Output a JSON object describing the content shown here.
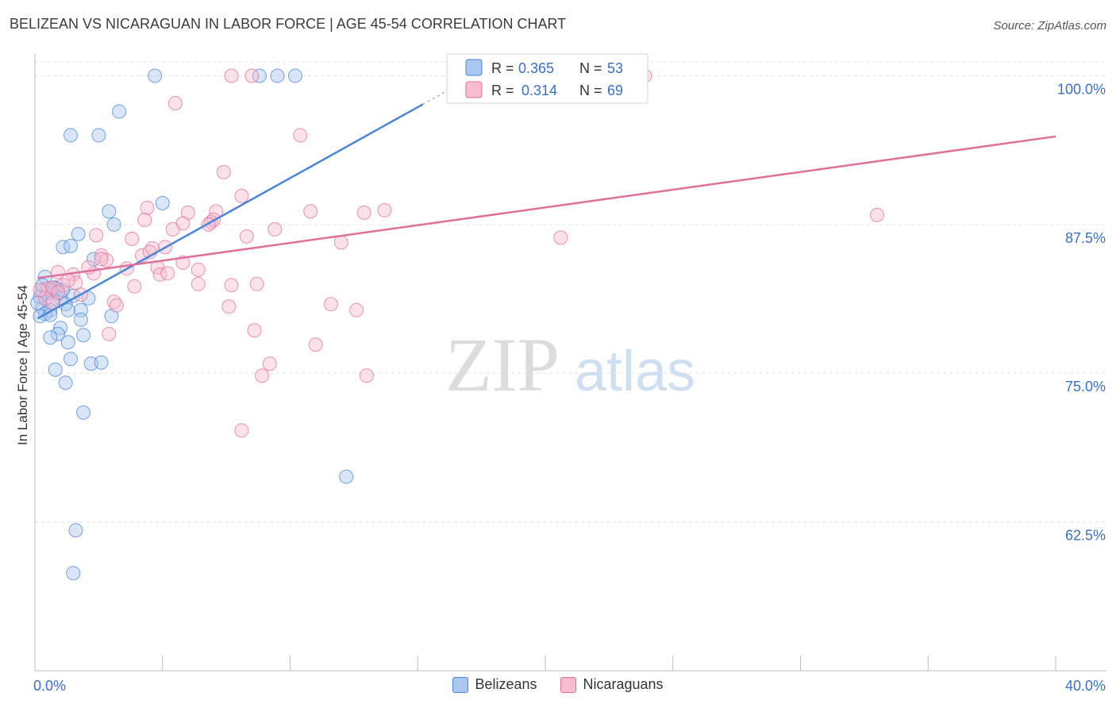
{
  "title": "BELIZEAN VS NICARAGUAN IN LABOR FORCE | AGE 45-54 CORRELATION CHART",
  "source": "Source: ZipAtlas.com",
  "watermark": {
    "zip": "ZIP",
    "atlas": "atlas"
  },
  "chart_data": {
    "type": "scatter",
    "xlabel": "",
    "ylabel": "In Labor Force | Age 45-54",
    "xlim": [
      0,
      40
    ],
    "ylim": [
      50,
      102.5
    ],
    "x_tick_labels": [
      {
        "value": 0,
        "label": "0.0%"
      },
      {
        "value": 40,
        "label": "40.0%"
      }
    ],
    "y_tick_labels": [
      {
        "value": 100,
        "label": "100.0%"
      },
      {
        "value": 87.5,
        "label": "87.5%"
      },
      {
        "value": 75,
        "label": "75.0%"
      },
      {
        "value": 62.5,
        "label": "62.5%"
      }
    ],
    "series": [
      {
        "name": "Belizeans",
        "color": "#4a86d8",
        "fill": "#a9c8f0",
        "R": "0.365",
        "N": "53",
        "trend": {
          "x0": 0.1,
          "y0": 79.6,
          "x1": 15.2,
          "y1": 97.6,
          "dash_x1": 18.5,
          "dash_y1": 101.5
        },
        "points": [
          [
            4.7,
            100
          ],
          [
            8.8,
            100
          ],
          [
            9.5,
            100
          ],
          [
            10.2,
            100
          ],
          [
            3.3,
            97
          ],
          [
            1.4,
            95
          ],
          [
            2.5,
            95
          ],
          [
            5.0,
            89.3
          ],
          [
            2.9,
            88.6
          ],
          [
            3.1,
            87.5
          ],
          [
            1.7,
            86.7
          ],
          [
            1.1,
            85.6
          ],
          [
            1.4,
            85.7
          ],
          [
            2.3,
            84.6
          ],
          [
            0.4,
            83.1
          ],
          [
            0.8,
            82.2
          ],
          [
            0.6,
            82
          ],
          [
            0.9,
            82
          ],
          [
            0.3,
            81.9
          ],
          [
            0.5,
            81.7
          ],
          [
            1.5,
            81.5
          ],
          [
            0.2,
            81.4
          ],
          [
            1.0,
            81.3
          ],
          [
            2.1,
            81.3
          ],
          [
            0.7,
            81.2
          ],
          [
            1.2,
            80.8
          ],
          [
            0.3,
            80.5
          ],
          [
            0.6,
            80.3
          ],
          [
            1.3,
            80.3
          ],
          [
            1.8,
            80.3
          ],
          [
            0.4,
            80.0
          ],
          [
            0.2,
            79.8
          ],
          [
            0.6,
            79.9
          ],
          [
            3.0,
            79.8
          ],
          [
            1.8,
            79.5
          ],
          [
            1.0,
            78.8
          ],
          [
            0.9,
            78.3
          ],
          [
            1.9,
            78.2
          ],
          [
            0.6,
            78.0
          ],
          [
            1.3,
            77.6
          ],
          [
            1.4,
            76.2
          ],
          [
            2.2,
            75.8
          ],
          [
            2.6,
            75.9
          ],
          [
            0.8,
            75.3
          ],
          [
            1.2,
            74.2
          ],
          [
            1.9,
            71.7
          ],
          [
            12.2,
            66.3
          ],
          [
            1.6,
            61.8
          ],
          [
            1.5,
            58.2
          ],
          [
            0.3,
            82.4
          ],
          [
            0.1,
            80.9
          ],
          [
            0.8,
            82.1
          ],
          [
            1.1,
            82.0
          ]
        ]
      },
      {
        "name": "Nicaraguans",
        "color": "#e0709a",
        "fill": "#f7bcd0",
        "R": "0.314",
        "N": "69",
        "trend": {
          "x0": 0.1,
          "y0": 83.0,
          "x1": 40.0,
          "y1": 94.9
        },
        "points": [
          [
            7.7,
            100
          ],
          [
            8.5,
            100
          ],
          [
            23.9,
            100
          ],
          [
            5.5,
            97.7
          ],
          [
            10.4,
            95
          ],
          [
            7.4,
            91.9
          ],
          [
            8.1,
            89.9
          ],
          [
            4.4,
            88.9
          ],
          [
            6.0,
            88.5
          ],
          [
            7.1,
            88.6
          ],
          [
            10.8,
            88.6
          ],
          [
            12.9,
            88.5
          ],
          [
            13.7,
            88.7
          ],
          [
            33.0,
            88.3
          ],
          [
            4.3,
            87.9
          ],
          [
            5.8,
            87.6
          ],
          [
            6.9,
            87.7
          ],
          [
            7.0,
            87.9
          ],
          [
            5.4,
            87.1
          ],
          [
            9.4,
            87.1
          ],
          [
            2.4,
            86.6
          ],
          [
            6.8,
            87.5
          ],
          [
            8.3,
            86.5
          ],
          [
            3.8,
            86.3
          ],
          [
            20.6,
            86.4
          ],
          [
            5.1,
            85.6
          ],
          [
            12.0,
            86.0
          ],
          [
            4.6,
            85.5
          ],
          [
            2.6,
            84.9
          ],
          [
            4.2,
            84.9
          ],
          [
            4.5,
            85.2
          ],
          [
            2.8,
            84.5
          ],
          [
            5.8,
            84.3
          ],
          [
            3.6,
            83.8
          ],
          [
            4.8,
            83.9
          ],
          [
            6.4,
            83.7
          ],
          [
            0.9,
            83.5
          ],
          [
            1.5,
            83.3
          ],
          [
            2.3,
            83.4
          ],
          [
            4.9,
            83.3
          ],
          [
            5.2,
            83.4
          ],
          [
            1.6,
            82.6
          ],
          [
            7.7,
            82.4
          ],
          [
            0.5,
            82.1
          ],
          [
            0.7,
            82.2
          ],
          [
            1.1,
            82.4
          ],
          [
            3.9,
            82.3
          ],
          [
            6.4,
            82.5
          ],
          [
            8.7,
            82.5
          ],
          [
            1.8,
            81.6
          ],
          [
            0.4,
            81.3
          ],
          [
            3.1,
            81.0
          ],
          [
            0.7,
            80.9
          ],
          [
            3.2,
            80.7
          ],
          [
            7.6,
            80.6
          ],
          [
            11.6,
            80.8
          ],
          [
            12.6,
            80.3
          ],
          [
            8.6,
            78.6
          ],
          [
            2.9,
            78.3
          ],
          [
            11.0,
            77.4
          ],
          [
            9.2,
            75.8
          ],
          [
            8.9,
            74.8
          ],
          [
            13.0,
            74.8
          ],
          [
            8.1,
            70.2
          ],
          [
            0.2,
            82.0
          ],
          [
            2.1,
            83.9
          ],
          [
            1.3,
            82.8
          ],
          [
            2.6,
            84.6
          ],
          [
            0.9,
            81.8
          ]
        ]
      }
    ]
  }
}
